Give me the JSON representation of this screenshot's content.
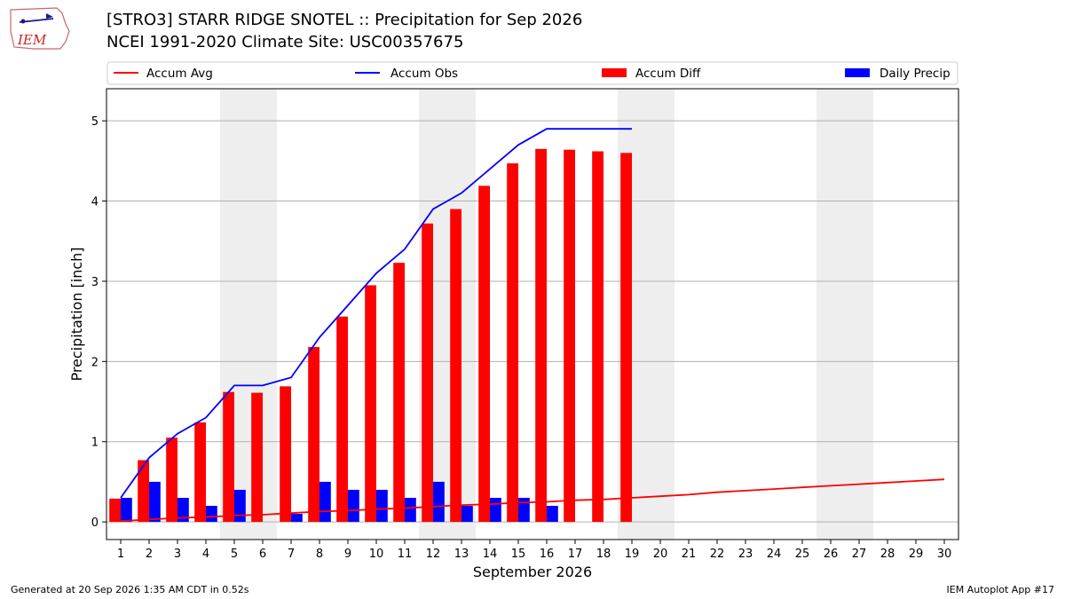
{
  "header": {
    "logo_text": "IEM",
    "title_line1": "[STRO3] STARR RIDGE SNOTEL :: Precipitation for Sep 2026",
    "title_line2": "NCEI 1991-2020 Climate Site: USC00357675"
  },
  "footer": {
    "left": "Generated at 20 Sep 2026 1:35 AM CDT in 0.52s",
    "right": "IEM Autoplot App #17"
  },
  "colors": {
    "accum_avg": "#ff0000",
    "accum_obs": "#0000ff",
    "accum_diff": "#ff0000",
    "daily_precip": "#0000ff",
    "weekend_shade": "#eeeeee",
    "grid": "#b0b0b0"
  },
  "chart_data": {
    "type": "bar",
    "xlabel": "September 2026",
    "ylabel": "Precipitation [inch]",
    "x": [
      1,
      2,
      3,
      4,
      5,
      6,
      7,
      8,
      9,
      10,
      11,
      12,
      13,
      14,
      15,
      16,
      17,
      18,
      19,
      20,
      21,
      22,
      23,
      24,
      25,
      26,
      27,
      28,
      29,
      30
    ],
    "xlim": [
      0.5,
      30.5
    ],
    "ylim": [
      -0.22,
      5.4
    ],
    "yticks": [
      0,
      1,
      2,
      3,
      4,
      5
    ],
    "grid": "horizontal",
    "legend_position": "top",
    "weekend_spans": [
      [
        4.5,
        6.5
      ],
      [
        11.5,
        13.5
      ],
      [
        18.5,
        20.5
      ],
      [
        25.5,
        27.5
      ]
    ],
    "legend": [
      "Accum Avg",
      "Accum Obs",
      "Accum Diff",
      "Daily Precip"
    ],
    "series": [
      {
        "name": "Accum Avg",
        "kind": "line",
        "x": [
          1,
          2,
          3,
          4,
          5,
          6,
          7,
          8,
          9,
          10,
          11,
          12,
          13,
          14,
          15,
          16,
          17,
          18,
          19,
          20,
          21,
          22,
          23,
          24,
          25,
          26,
          27,
          28,
          29,
          30
        ],
        "values": [
          0.01,
          0.03,
          0.05,
          0.06,
          0.08,
          0.09,
          0.11,
          0.13,
          0.14,
          0.16,
          0.17,
          0.19,
          0.21,
          0.22,
          0.24,
          0.25,
          0.27,
          0.28,
          0.3,
          0.32,
          0.34,
          0.37,
          0.39,
          0.41,
          0.43,
          0.45,
          0.47,
          0.49,
          0.51,
          0.53
        ]
      },
      {
        "name": "Accum Obs",
        "kind": "line",
        "x": [
          1,
          2,
          3,
          4,
          5,
          6,
          7,
          8,
          9,
          10,
          11,
          12,
          13,
          14,
          15,
          16,
          17,
          18,
          19
        ],
        "values": [
          0.3,
          0.8,
          1.1,
          1.3,
          1.7,
          1.7,
          1.8,
          2.3,
          2.7,
          3.1,
          3.4,
          3.9,
          4.1,
          4.4,
          4.7,
          4.9,
          4.9,
          4.9,
          4.9
        ]
      },
      {
        "name": "Accum Diff",
        "kind": "bar",
        "x": [
          1,
          2,
          3,
          4,
          5,
          6,
          7,
          8,
          9,
          10,
          11,
          12,
          13,
          14,
          15,
          16,
          17,
          18,
          19
        ],
        "values": [
          0.29,
          0.77,
          1.05,
          1.24,
          1.62,
          1.61,
          1.69,
          2.18,
          2.56,
          2.95,
          3.23,
          3.72,
          3.9,
          4.19,
          4.47,
          4.65,
          4.64,
          4.62,
          4.6
        ]
      },
      {
        "name": "Daily Precip",
        "kind": "bar",
        "x": [
          1,
          2,
          3,
          4,
          5,
          6,
          7,
          8,
          9,
          10,
          11,
          12,
          13,
          14,
          15,
          16,
          17,
          18,
          19
        ],
        "values": [
          0.3,
          0.5,
          0.3,
          0.2,
          0.4,
          0.0,
          0.1,
          0.5,
          0.4,
          0.4,
          0.3,
          0.5,
          0.2,
          0.3,
          0.3,
          0.2,
          0.0,
          0.0,
          0.0
        ]
      }
    ]
  }
}
